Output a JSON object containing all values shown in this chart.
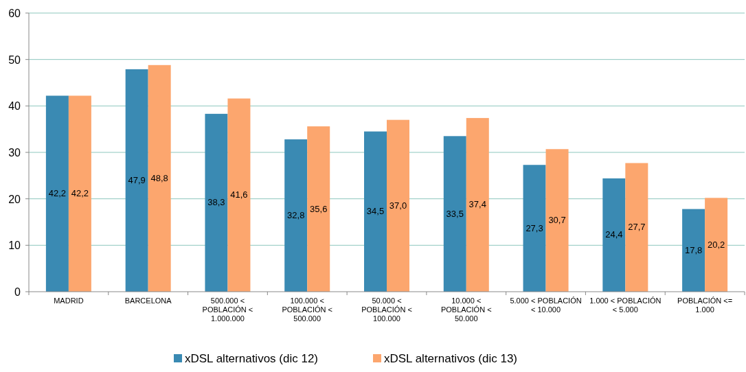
{
  "chart_data": {
    "type": "bar",
    "categories": [
      "MADRID",
      "BARCELONA",
      "500.000 < POBLACIÓN < 1.000.000",
      "100.000 < POBLACIÓN < 500.000",
      "50.000 < POBLACIÓN < 100.000",
      "10.000 < POBLACIÓN < 50.000",
      "5.000 < POBLACIÓN < 10.000",
      "1.000 < POBLACIÓN < 5.000",
      "POBLACIÓN <= 1.000"
    ],
    "series": [
      {
        "name": "xDSL alternativos (dic 12)",
        "color": "#3a8ab3",
        "values": [
          42.2,
          47.9,
          38.3,
          32.8,
          34.5,
          33.5,
          27.3,
          24.4,
          17.8
        ],
        "value_labels": [
          "42,2",
          "47,9",
          "38,3",
          "32,8",
          "34,5",
          "33,5",
          "27,3",
          "24,4",
          "17,8"
        ]
      },
      {
        "name": "xDSL alternativos (dic 13)",
        "color": "#fca66e",
        "values": [
          42.2,
          48.8,
          41.6,
          35.6,
          37.0,
          37.4,
          30.7,
          27.7,
          20.2
        ],
        "value_labels": [
          "42,2",
          "48,8",
          "41,6",
          "35,6",
          "37,0",
          "37,4",
          "30,7",
          "27,7",
          "20,2"
        ]
      }
    ],
    "ylim": [
      0,
      60
    ],
    "yticks": [
      0,
      10,
      20,
      30,
      40,
      50,
      60
    ],
    "grid": "y",
    "legend": "bottom"
  }
}
